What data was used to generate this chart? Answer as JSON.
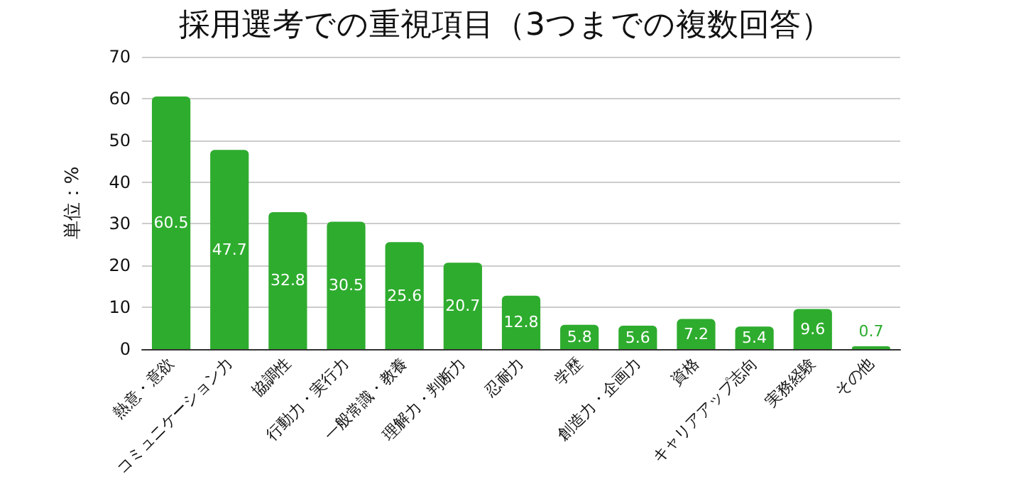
{
  "chart_data": {
    "type": "bar",
    "title": "採用選考での重視項目（3つまでの複数回答）",
    "ylabel": "単位：%",
    "categories": [
      "熱意・意欲",
      "コミュニケーション力",
      "協調性",
      "行動力・実行力",
      "一般常識・教養",
      "理解力・判断力",
      "忍耐力",
      "学歴",
      "創造力・企画力",
      "資格",
      "キャリアアップ志向",
      "実務経験",
      "その他"
    ],
    "values": [
      60.5,
      47.7,
      32.8,
      30.5,
      25.6,
      20.7,
      12.8,
      5.8,
      5.6,
      7.2,
      5.4,
      9.6,
      0.7
    ],
    "color": "#2eac2e",
    "ylim": [
      0,
      70
    ],
    "yticks": [
      0,
      10,
      20,
      30,
      40,
      50,
      60,
      70
    ],
    "grid": "y",
    "data_labels": true
  }
}
